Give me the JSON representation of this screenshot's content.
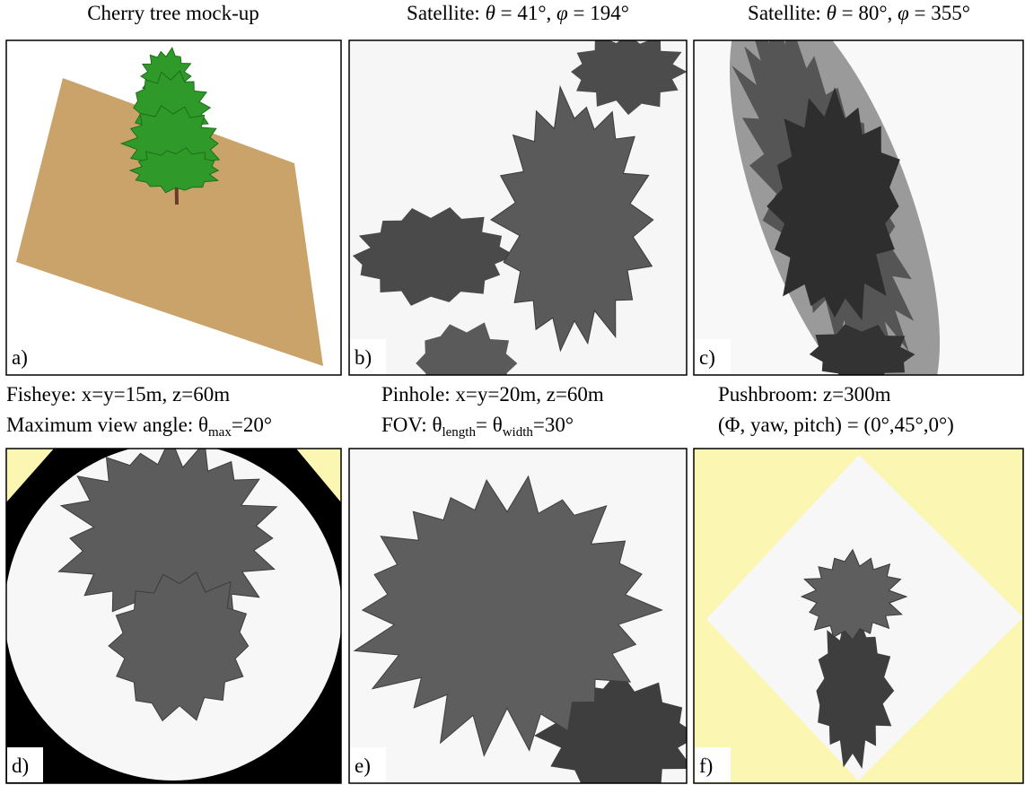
{
  "panels": [
    {
      "label": "a)",
      "caption": [
        [
          {
            "text": "Cherry tree mock-up"
          }
        ]
      ]
    },
    {
      "label": "b)",
      "caption": [
        [
          {
            "text": "Satellite: "
          },
          {
            "text": "θ",
            "italic": true
          },
          {
            "text": " = 41°, "
          },
          {
            "text": "φ",
            "italic": true
          },
          {
            "text": " = 194°"
          }
        ]
      ]
    },
    {
      "label": "c)",
      "caption": [
        [
          {
            "text": "Satellite: "
          },
          {
            "text": "θ",
            "italic": true
          },
          {
            "text": " = 80°, "
          },
          {
            "text": "φ",
            "italic": true
          },
          {
            "text": " = 355°"
          }
        ]
      ]
    },
    {
      "label": "d)",
      "caption": [
        [
          {
            "text": "Fisheye: x=y=15m, z=60m"
          }
        ],
        [
          {
            "text": "Maximum view angle: θ"
          },
          {
            "text": "max",
            "sub": true
          },
          {
            "text": "=20°"
          }
        ]
      ]
    },
    {
      "label": "e)",
      "caption": [
        [
          {
            "text": "Pinhole: x=y=20m, z=60m"
          }
        ],
        [
          {
            "text": "FOV: θ"
          },
          {
            "text": "length",
            "sub": true
          },
          {
            "text": "= θ"
          },
          {
            "text": "width",
            "sub": true
          },
          {
            "text": "=30°"
          }
        ]
      ]
    },
    {
      "label": "f)",
      "caption": [
        [
          {
            "text": "Pushbroom: z=300m"
          }
        ],
        [
          {
            "text": "(Φ, yaw, pitch) = (0°,45°,0°)"
          }
        ]
      ]
    }
  ]
}
